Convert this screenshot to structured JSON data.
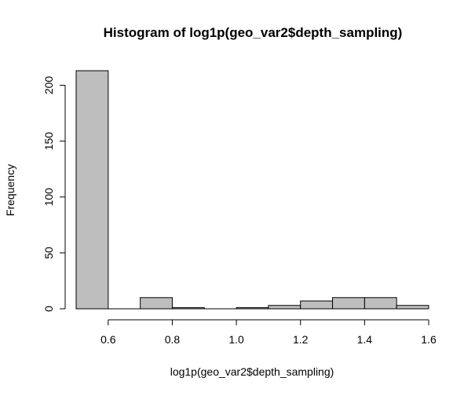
{
  "chart_data": {
    "type": "bar",
    "title": "Histogram of log1p(geo_var2$depth_sampling)",
    "xlabel": "log1p(geo_var2$depth_sampling)",
    "ylabel": "Frequency",
    "xlim": [
      0.5,
      1.6
    ],
    "ylim": [
      0,
      213
    ],
    "bin_width": 0.1,
    "bins": [
      {
        "start": 0.5,
        "end": 0.6,
        "count": 213
      },
      {
        "start": 0.6,
        "end": 0.7,
        "count": 0
      },
      {
        "start": 0.7,
        "end": 0.8,
        "count": 10
      },
      {
        "start": 0.8,
        "end": 0.9,
        "count": 1
      },
      {
        "start": 0.9,
        "end": 1.0,
        "count": 0
      },
      {
        "start": 1.0,
        "end": 1.1,
        "count": 1
      },
      {
        "start": 1.1,
        "end": 1.2,
        "count": 3
      },
      {
        "start": 1.2,
        "end": 1.3,
        "count": 7
      },
      {
        "start": 1.3,
        "end": 1.4,
        "count": 10
      },
      {
        "start": 1.4,
        "end": 1.5,
        "count": 10
      },
      {
        "start": 1.5,
        "end": 1.6,
        "count": 3
      }
    ],
    "x_ticks": [
      0.6,
      0.8,
      1.0,
      1.2,
      1.4,
      1.6
    ],
    "x_tick_labels": [
      "0.6",
      "0.8",
      "1.0",
      "1.2",
      "1.4",
      "1.6"
    ],
    "y_ticks": [
      0,
      50,
      100,
      150,
      200
    ],
    "y_tick_labels": [
      "0",
      "50",
      "100",
      "150",
      "200"
    ],
    "grid": false,
    "bar_color": "#bebebe",
    "edge_color": "#000000"
  }
}
